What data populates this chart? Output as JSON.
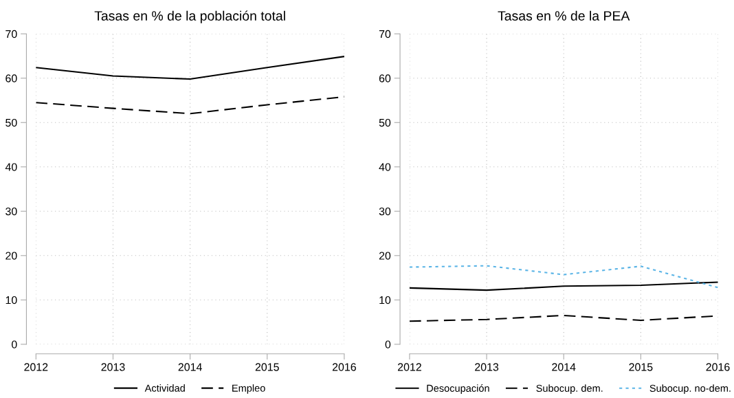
{
  "chart_data": [
    {
      "type": "line",
      "title": "Tasas en % de la población total",
      "x": [
        2012,
        2013,
        2014,
        2015,
        2016
      ],
      "xlim": [
        2012,
        2016
      ],
      "xticks": [
        2012,
        2013,
        2014,
        2015,
        2016
      ],
      "ylim": [
        0,
        70
      ],
      "yticks": [
        0,
        10,
        20,
        30,
        40,
        50,
        60,
        70
      ],
      "grid": true,
      "legend": "bottom",
      "marker": "none",
      "series": [
        {
          "name": "Actividad",
          "color": "#000000",
          "line_style": "solid",
          "values": [
            62.4,
            60.5,
            59.8,
            62.4,
            64.9
          ]
        },
        {
          "name": "Empleo",
          "color": "#000000",
          "line_style": "dashed",
          "values": [
            54.5,
            53.2,
            52.0,
            54.0,
            55.8
          ]
        }
      ]
    },
    {
      "type": "line",
      "title": "Tasas en % de la PEA",
      "x": [
        2012,
        2013,
        2014,
        2015,
        2016
      ],
      "xlim": [
        2012,
        2016
      ],
      "xticks": [
        2012,
        2013,
        2014,
        2015,
        2016
      ],
      "ylim": [
        0,
        70
      ],
      "yticks": [
        0,
        10,
        20,
        30,
        40,
        50,
        60,
        70
      ],
      "grid": true,
      "legend": "bottom",
      "marker": "none",
      "series": [
        {
          "name": "Desocupación",
          "color": "#000000",
          "line_style": "solid",
          "values": [
            12.7,
            12.2,
            13.1,
            13.3,
            14.0
          ]
        },
        {
          "name": "Subocup. dem.",
          "color": "#000000",
          "line_style": "dashed",
          "values": [
            5.2,
            5.6,
            6.5,
            5.4,
            6.4
          ]
        },
        {
          "name": "Subocup. no-dem.",
          "color": "#5ab4e6",
          "line_style": "dotted",
          "values": [
            17.4,
            17.7,
            15.7,
            17.6,
            12.8
          ]
        }
      ]
    }
  ]
}
